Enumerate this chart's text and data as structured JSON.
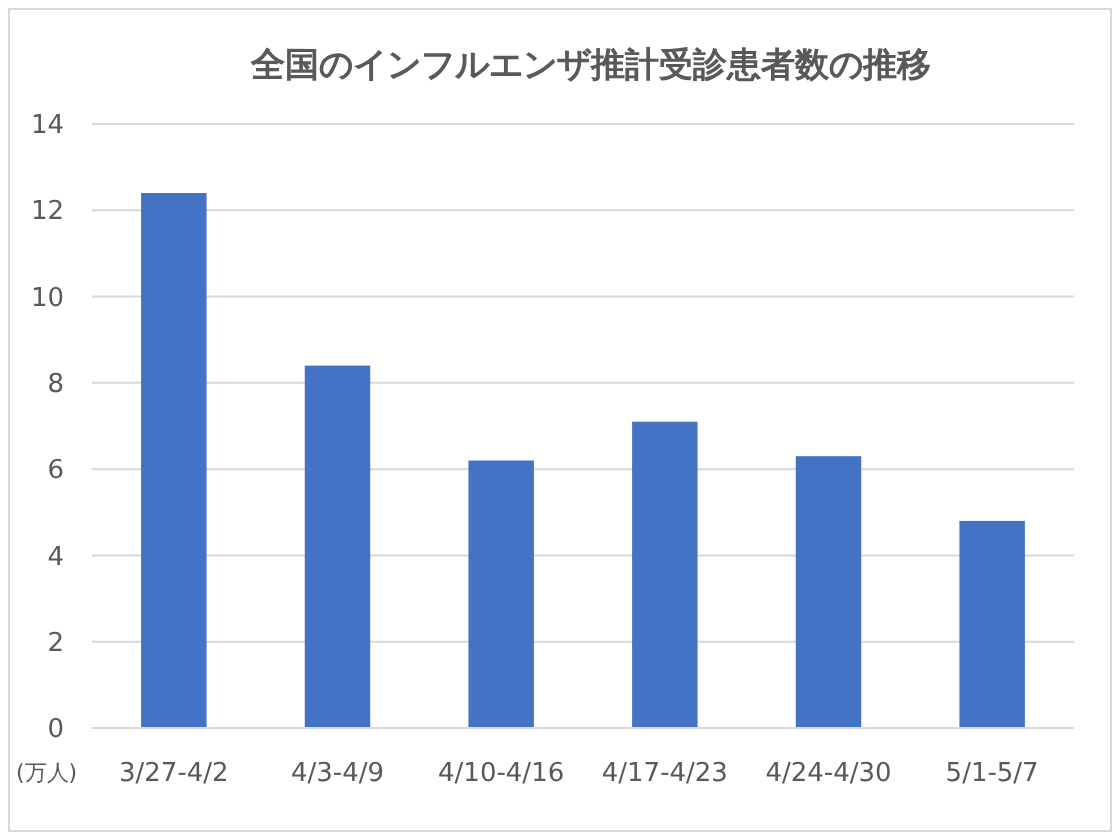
{
  "chart_data": {
    "type": "bar",
    "title": "全国のインフルエンザ推計受診患者数の推移",
    "ylabel": "(万人)",
    "categories": [
      "3/27-4/2",
      "4/3-4/9",
      "4/10-4/16",
      "4/17-4/23",
      "4/24-4/30",
      "5/1-5/7"
    ],
    "values": [
      12.4,
      8.4,
      6.2,
      7.1,
      6.3,
      4.8
    ],
    "color": "#4472c4",
    "ylim": [
      0,
      14
    ],
    "yticks": [
      0,
      2,
      4,
      6,
      8,
      10,
      12,
      14
    ],
    "grid": "y"
  }
}
